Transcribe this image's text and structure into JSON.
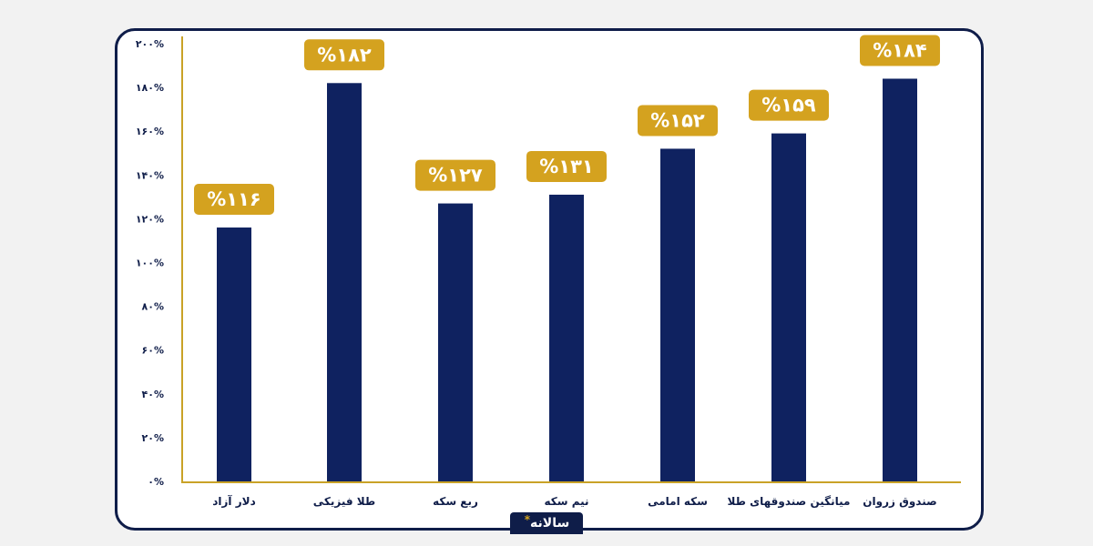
{
  "chart_data": {
    "type": "bar",
    "categories": [
      "دلار آزاد",
      "طلا فیزیکی",
      "ربع سکه",
      "نیم سکه",
      "سکه امامی",
      "میانگین صندوقهای طلا",
      "صندوق زروان"
    ],
    "values": [
      116,
      182,
      127,
      131,
      152,
      159,
      184
    ],
    "data_labels": [
      "%۱۱۶",
      "%۱۸۲",
      "%۱۲۷",
      "%۱۳۱",
      "%۱۵۲",
      "%۱۵۹",
      "%۱۸۴"
    ],
    "ylim": [
      0,
      200
    ],
    "yticks": [
      0,
      20,
      40,
      60,
      80,
      100,
      120,
      140,
      160,
      180,
      200
    ],
    "ytick_labels": [
      "۰%",
      "۲۰%",
      "۴۰%",
      "۶۰%",
      "۸۰%",
      "۱۰۰%",
      "۱۲۰%",
      "۱۴۰%",
      "۱۶۰%",
      "۱۸۰%",
      "۲۰۰%"
    ],
    "xlabel": "",
    "ylabel": "",
    "title": "",
    "grid": false,
    "colors": {
      "bar": "#0f2260",
      "label_bg": "#d4a21f",
      "axis": "#c9a227",
      "frame": "#0f1d49"
    }
  },
  "period": {
    "label": "سالانه",
    "marker": "*"
  }
}
